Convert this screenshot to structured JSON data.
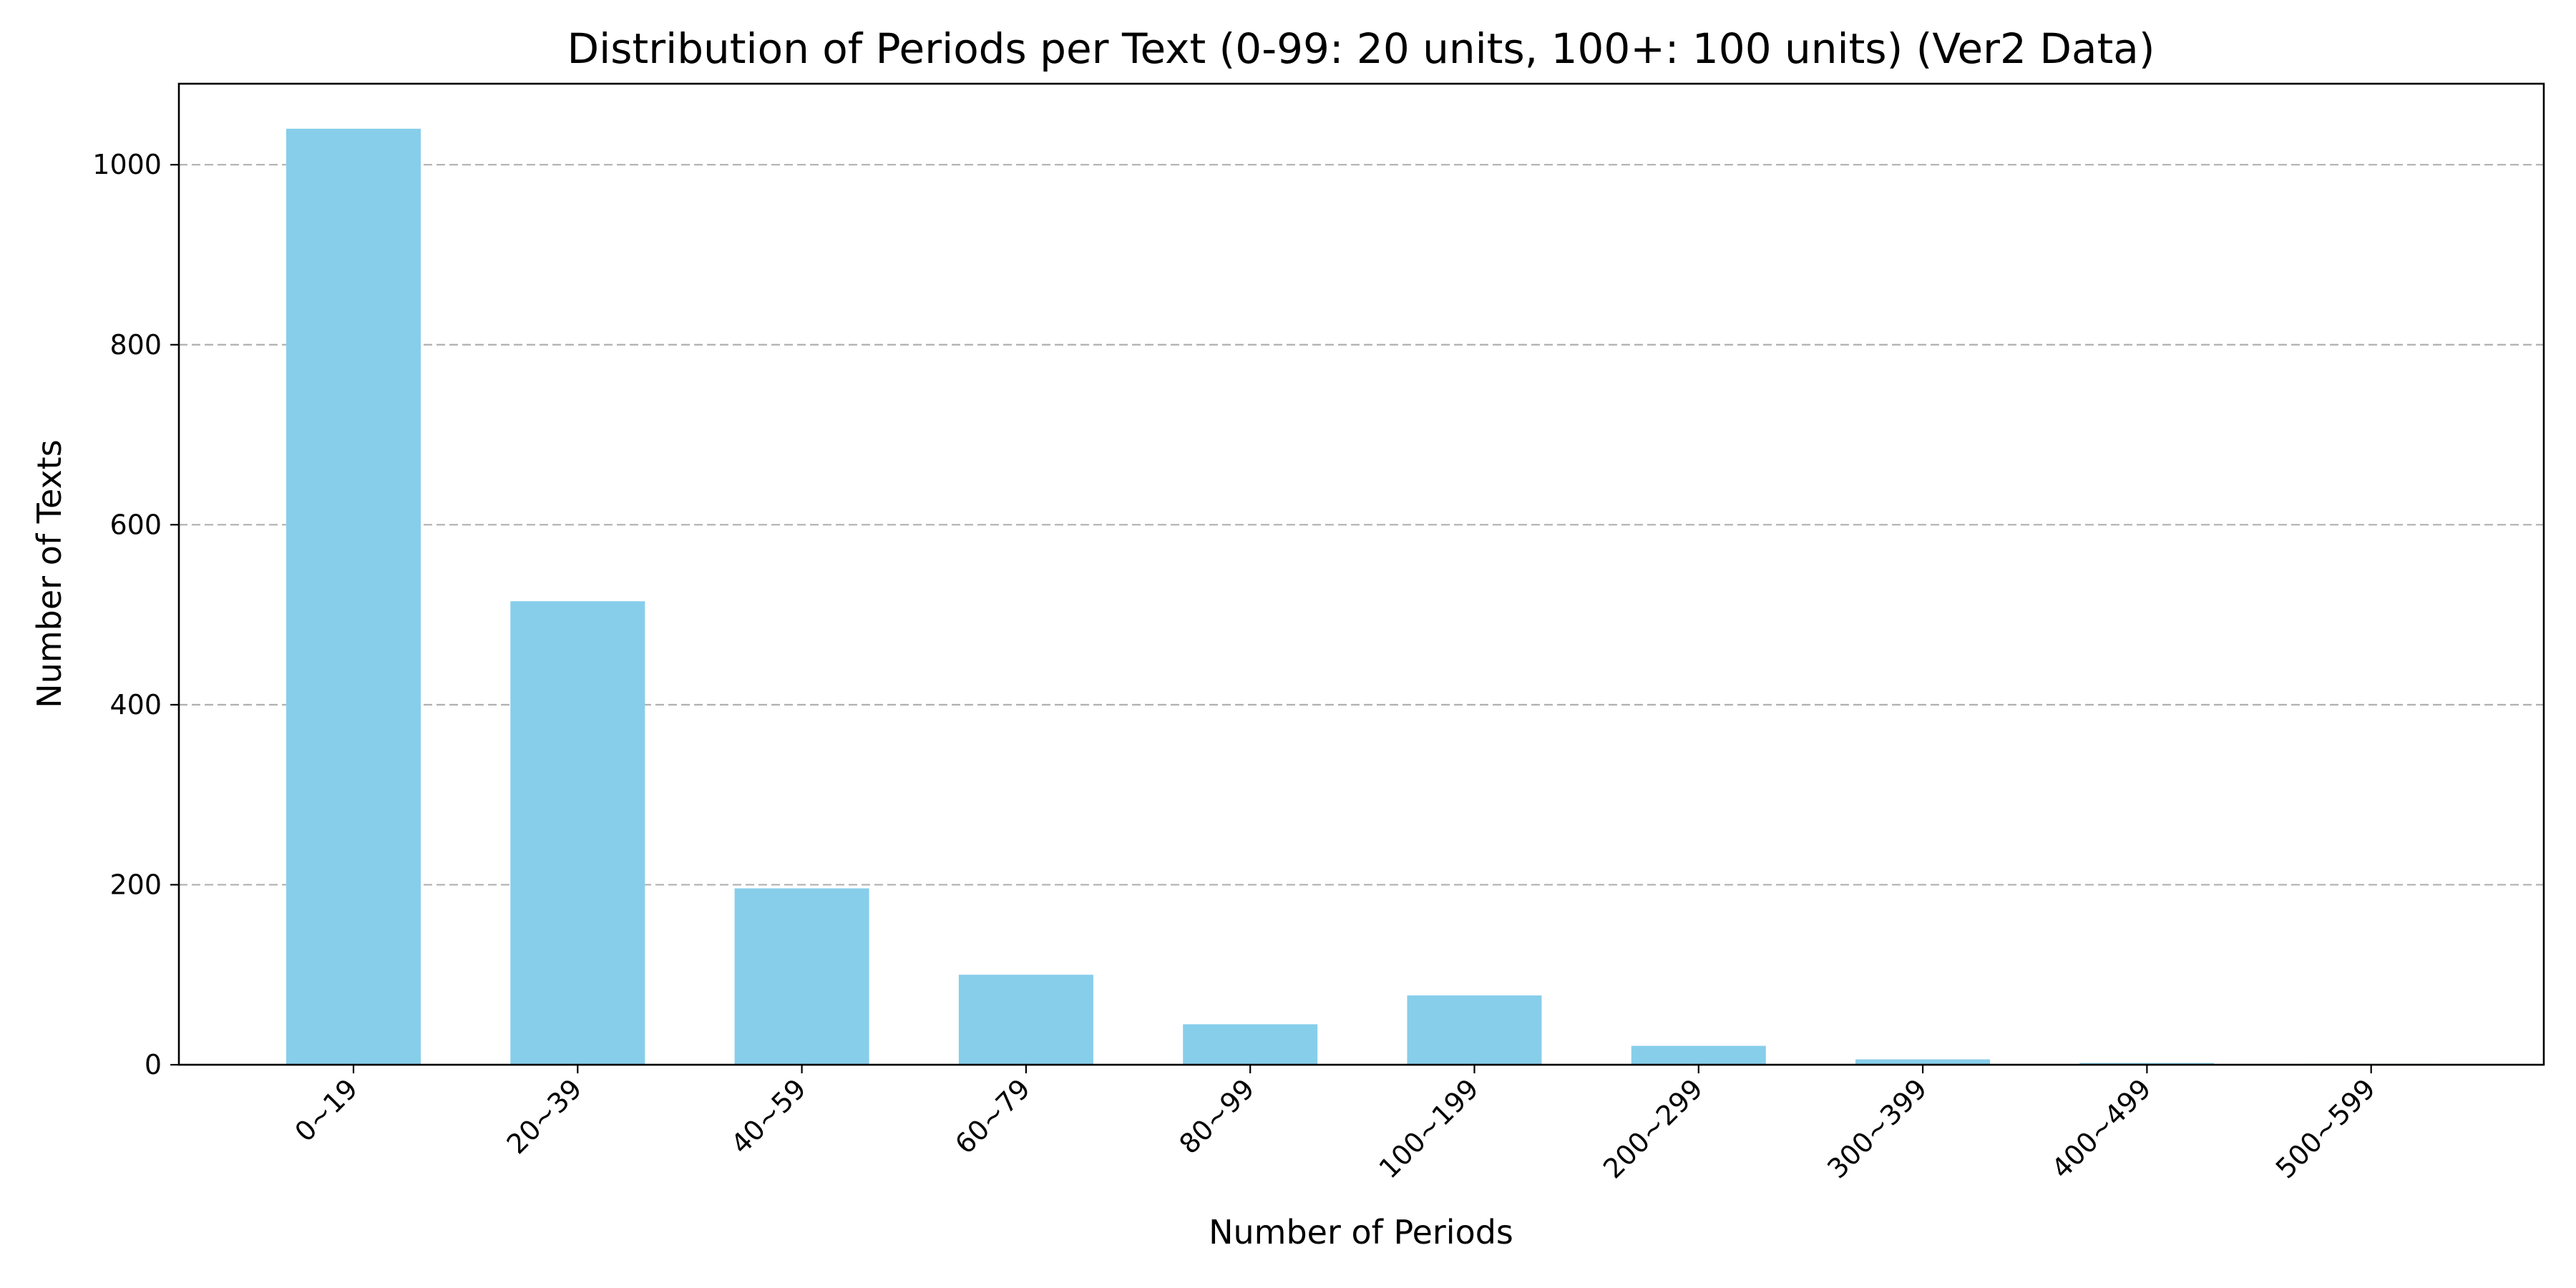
{
  "chart_data": {
    "type": "bar",
    "title": "Distribution of Periods per Text (0-99: 20 units, 100+: 100 units) (Ver2 Data)",
    "xlabel": "Number of Periods",
    "ylabel": "Number of Texts",
    "categories": [
      "0~19",
      "20~39",
      "40~59",
      "60~79",
      "80~99",
      "100~199",
      "200~299",
      "300~399",
      "400~499",
      "500~599"
    ],
    "values": [
      1040,
      515,
      196,
      100,
      45,
      77,
      21,
      6,
      2,
      1
    ],
    "ylim": [
      0,
      1090
    ],
    "yticks": [
      0,
      200,
      400,
      600,
      800,
      1000
    ],
    "grid": "y-dashed",
    "bar_color": "#87CEEB"
  }
}
